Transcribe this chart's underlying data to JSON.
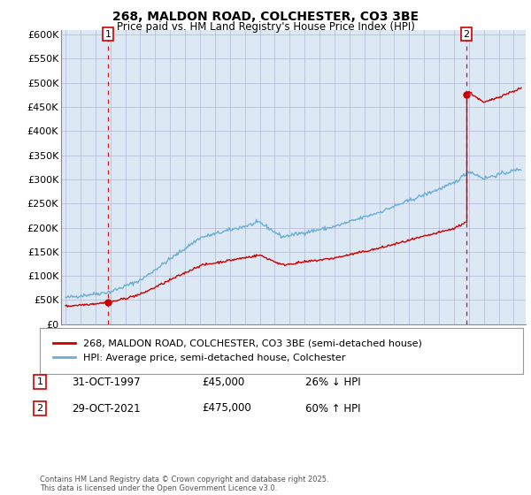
{
  "title1": "268, MALDON ROAD, COLCHESTER, CO3 3BE",
  "title2": "Price paid vs. HM Land Registry's House Price Index (HPI)",
  "ylabel_ticks": [
    "£0",
    "£50K",
    "£100K",
    "£150K",
    "£200K",
    "£250K",
    "£300K",
    "£350K",
    "£400K",
    "£450K",
    "£500K",
    "£550K",
    "£600K"
  ],
  "ytick_vals": [
    0,
    50000,
    100000,
    150000,
    200000,
    250000,
    300000,
    350000,
    400000,
    450000,
    500000,
    550000,
    600000
  ],
  "ylim": [
    0,
    610000
  ],
  "xlim_start": 1994.7,
  "xlim_end": 2025.8,
  "hpi_color": "#6baed6",
  "price_color": "#cc0000",
  "bg_color": "#dce9f5",
  "sale1_x": 1997.83,
  "sale1_y": 45000,
  "sale2_x": 2021.83,
  "sale2_y": 475000,
  "legend_line1": "268, MALDON ROAD, COLCHESTER, CO3 3BE (semi-detached house)",
  "legend_line2": "HPI: Average price, semi-detached house, Colchester",
  "table_row1_num": "1",
  "table_row1_date": "31-OCT-1997",
  "table_row1_price": "£45,000",
  "table_row1_hpi": "26% ↓ HPI",
  "table_row2_num": "2",
  "table_row2_date": "29-OCT-2021",
  "table_row2_price": "£475,000",
  "table_row2_hpi": "60% ↑ HPI",
  "footnote": "Contains HM Land Registry data © Crown copyright and database right 2025.\nThis data is licensed under the Open Government Licence v3.0.",
  "background_color": "#ffffff",
  "grid_color": "#aaaacc"
}
